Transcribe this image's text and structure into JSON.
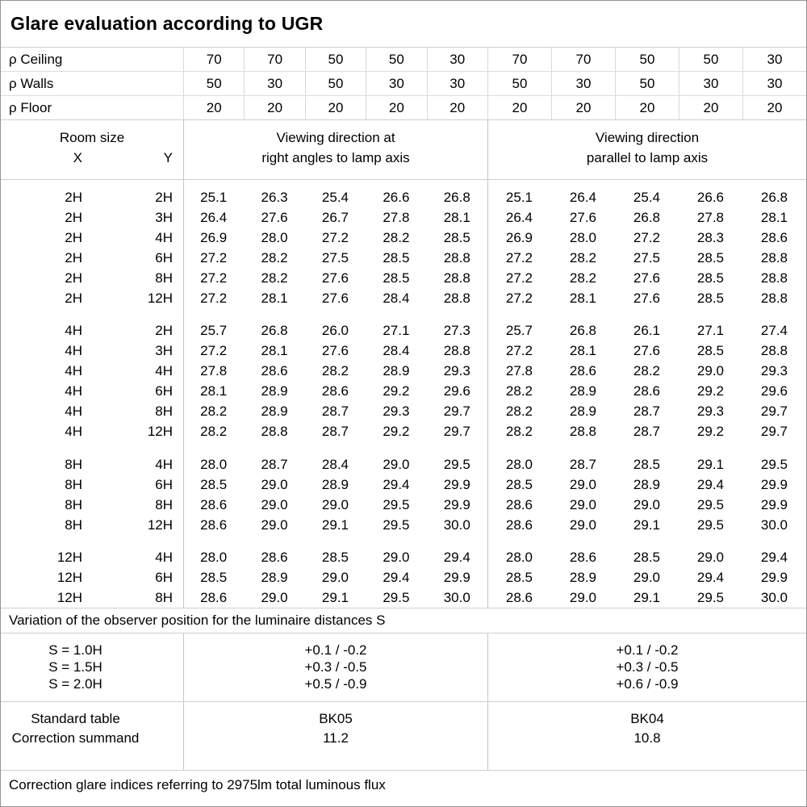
{
  "title": "Glare evaluation according to UGR",
  "reflectance": {
    "rows": [
      {
        "label": "ρ Ceiling",
        "values": [
          "70",
          "70",
          "50",
          "50",
          "30",
          "70",
          "70",
          "50",
          "50",
          "30"
        ]
      },
      {
        "label": "ρ Walls",
        "values": [
          "50",
          "30",
          "50",
          "30",
          "30",
          "50",
          "30",
          "50",
          "30",
          "30"
        ]
      },
      {
        "label": "ρ Floor",
        "values": [
          "20",
          "20",
          "20",
          "20",
          "20",
          "20",
          "20",
          "20",
          "20",
          "20"
        ]
      }
    ]
  },
  "header": {
    "room_size_label": "Room size",
    "x_label": "X",
    "y_label": "Y",
    "left_title_lines": [
      "Viewing direction at",
      "right angles to lamp axis"
    ],
    "right_title_lines": [
      "Viewing direction",
      "parallel to lamp axis"
    ]
  },
  "ugr_table": {
    "blocks": [
      {
        "rows": [
          {
            "x": "2H",
            "y": "2H",
            "left": [
              "25.1",
              "26.3",
              "25.4",
              "26.6",
              "26.8"
            ],
            "right": [
              "25.1",
              "26.4",
              "25.4",
              "26.6",
              "26.8"
            ]
          },
          {
            "x": "2H",
            "y": "3H",
            "left": [
              "26.4",
              "27.6",
              "26.7",
              "27.8",
              "28.1"
            ],
            "right": [
              "26.4",
              "27.6",
              "26.8",
              "27.8",
              "28.1"
            ]
          },
          {
            "x": "2H",
            "y": "4H",
            "left": [
              "26.9",
              "28.0",
              "27.2",
              "28.2",
              "28.5"
            ],
            "right": [
              "26.9",
              "28.0",
              "27.2",
              "28.3",
              "28.6"
            ]
          },
          {
            "x": "2H",
            "y": "6H",
            "left": [
              "27.2",
              "28.2",
              "27.5",
              "28.5",
              "28.8"
            ],
            "right": [
              "27.2",
              "28.2",
              "27.5",
              "28.5",
              "28.8"
            ]
          },
          {
            "x": "2H",
            "y": "8H",
            "left": [
              "27.2",
              "28.2",
              "27.6",
              "28.5",
              "28.8"
            ],
            "right": [
              "27.2",
              "28.2",
              "27.6",
              "28.5",
              "28.8"
            ]
          },
          {
            "x": "2H",
            "y": "12H",
            "left": [
              "27.2",
              "28.1",
              "27.6",
              "28.4",
              "28.8"
            ],
            "right": [
              "27.2",
              "28.1",
              "27.6",
              "28.5",
              "28.8"
            ]
          }
        ]
      },
      {
        "rows": [
          {
            "x": "4H",
            "y": "2H",
            "left": [
              "25.7",
              "26.8",
              "26.0",
              "27.1",
              "27.3"
            ],
            "right": [
              "25.7",
              "26.8",
              "26.1",
              "27.1",
              "27.4"
            ]
          },
          {
            "x": "4H",
            "y": "3H",
            "left": [
              "27.2",
              "28.1",
              "27.6",
              "28.4",
              "28.8"
            ],
            "right": [
              "27.2",
              "28.1",
              "27.6",
              "28.5",
              "28.8"
            ]
          },
          {
            "x": "4H",
            "y": "4H",
            "left": [
              "27.8",
              "28.6",
              "28.2",
              "28.9",
              "29.3"
            ],
            "right": [
              "27.8",
              "28.6",
              "28.2",
              "29.0",
              "29.3"
            ]
          },
          {
            "x": "4H",
            "y": "6H",
            "left": [
              "28.1",
              "28.9",
              "28.6",
              "29.2",
              "29.6"
            ],
            "right": [
              "28.2",
              "28.9",
              "28.6",
              "29.2",
              "29.6"
            ]
          },
          {
            "x": "4H",
            "y": "8H",
            "left": [
              "28.2",
              "28.9",
              "28.7",
              "29.3",
              "29.7"
            ],
            "right": [
              "28.2",
              "28.9",
              "28.7",
              "29.3",
              "29.7"
            ]
          },
          {
            "x": "4H",
            "y": "12H",
            "left": [
              "28.2",
              "28.8",
              "28.7",
              "29.2",
              "29.7"
            ],
            "right": [
              "28.2",
              "28.8",
              "28.7",
              "29.2",
              "29.7"
            ]
          }
        ]
      },
      {
        "rows": [
          {
            "x": "8H",
            "y": "4H",
            "left": [
              "28.0",
              "28.7",
              "28.4",
              "29.0",
              "29.5"
            ],
            "right": [
              "28.0",
              "28.7",
              "28.5",
              "29.1",
              "29.5"
            ]
          },
          {
            "x": "8H",
            "y": "6H",
            "left": [
              "28.5",
              "29.0",
              "28.9",
              "29.4",
              "29.9"
            ],
            "right": [
              "28.5",
              "29.0",
              "28.9",
              "29.4",
              "29.9"
            ]
          },
          {
            "x": "8H",
            "y": "8H",
            "left": [
              "28.6",
              "29.0",
              "29.0",
              "29.5",
              "29.9"
            ],
            "right": [
              "28.6",
              "29.0",
              "29.0",
              "29.5",
              "29.9"
            ]
          },
          {
            "x": "8H",
            "y": "12H",
            "left": [
              "28.6",
              "29.0",
              "29.1",
              "29.5",
              "30.0"
            ],
            "right": [
              "28.6",
              "29.0",
              "29.1",
              "29.5",
              "30.0"
            ]
          }
        ]
      },
      {
        "rows": [
          {
            "x": "12H",
            "y": "4H",
            "left": [
              "28.0",
              "28.6",
              "28.5",
              "29.0",
              "29.4"
            ],
            "right": [
              "28.0",
              "28.6",
              "28.5",
              "29.0",
              "29.4"
            ]
          },
          {
            "x": "12H",
            "y": "6H",
            "left": [
              "28.5",
              "28.9",
              "29.0",
              "29.4",
              "29.9"
            ],
            "right": [
              "28.5",
              "28.9",
              "29.0",
              "29.4",
              "29.9"
            ]
          },
          {
            "x": "12H",
            "y": "8H",
            "left": [
              "28.6",
              "29.0",
              "29.1",
              "29.5",
              "30.0"
            ],
            "right": [
              "28.6",
              "29.0",
              "29.1",
              "29.5",
              "30.0"
            ]
          }
        ]
      }
    ]
  },
  "variation_note": "Variation of the observer position for the luminaire distances S",
  "s_variation": {
    "labels": [
      "S = 1.0H",
      "S = 1.5H",
      "S = 2.0H"
    ],
    "left": [
      "+0.1 / -0.2",
      "+0.3 / -0.5",
      "+0.5 / -0.9"
    ],
    "right": [
      "+0.1 / -0.2",
      "+0.3 / -0.5",
      "+0.6 / -0.9"
    ]
  },
  "summary": {
    "labels": [
      "Standard table",
      "Correction summand"
    ],
    "left": [
      "BK05",
      "11.2"
    ],
    "right": [
      "BK04",
      "10.8"
    ]
  },
  "footer_note": "Correction glare indices referring to 2975lm total luminous flux"
}
